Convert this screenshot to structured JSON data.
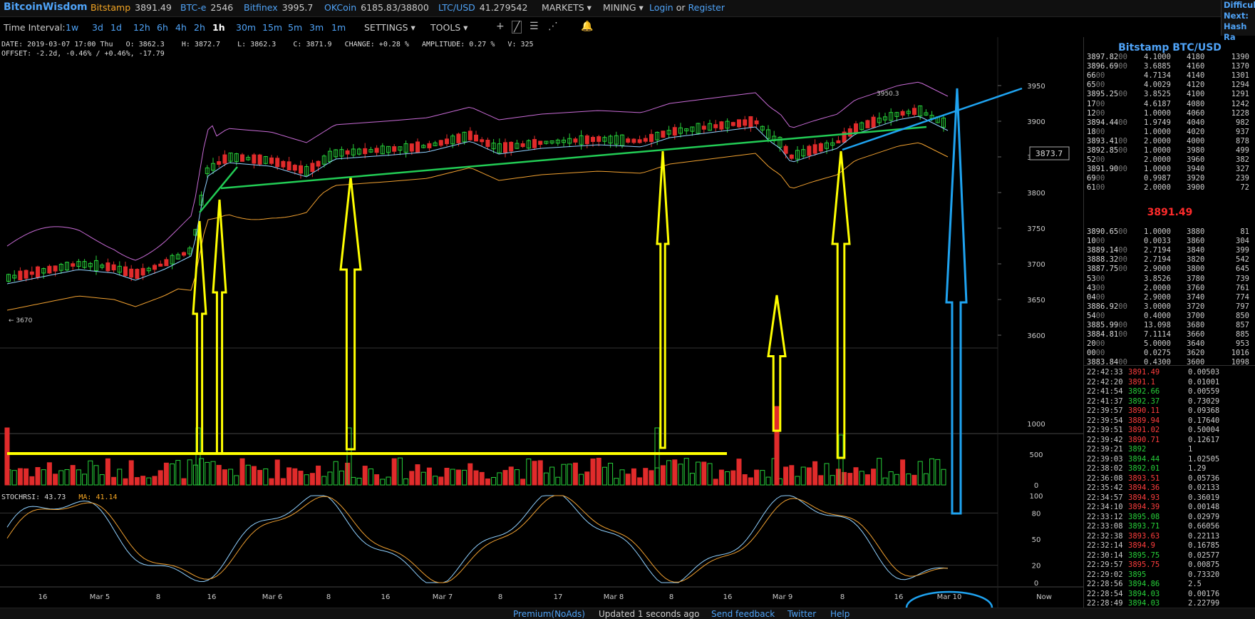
{
  "topbar": {
    "brand": "BitcoinWisdom",
    "tickers": [
      {
        "name": "Bitstamp",
        "value": "3891.49",
        "style": "orange"
      },
      {
        "name": "BTC-e",
        "value": "2546",
        "style": "blue"
      },
      {
        "name": "Bitfinex",
        "value": "3995.7",
        "style": "blue"
      },
      {
        "name": "OKCoin",
        "value": "6185.83/38800",
        "style": "blue"
      },
      {
        "name": "LTC/USD",
        "value": "41.279542",
        "style": "blue"
      }
    ],
    "markets": "MARKETS ▾",
    "mining": "MINING ▾",
    "login": "Login",
    "or": "or",
    "register": "Register",
    "difficulty": {
      "l1": "Difficult",
      "l2": "Next:",
      "l3": "Hash Ra"
    }
  },
  "toolbar": {
    "time_interval_label": "Time Interval:",
    "intervals": [
      "1w",
      "3d",
      "1d",
      "12h",
      "6h",
      "4h",
      "2h",
      "1h",
      "30m",
      "15m",
      "5m",
      "3m",
      "1m"
    ],
    "active_interval": "1h",
    "settings": "SETTINGS ▾",
    "tools": "TOOLS ▾",
    "tool_icons": [
      "crosshair-icon",
      "line-draw-icon",
      "horizontal-lines-icon",
      "fib-fan-icon",
      "alert-bell-icon"
    ]
  },
  "info": {
    "line1": "DATE: 2019-03-07 17:00 Thu   O: 3862.3    H: 3872.7    L: 3862.3    C: 3871.9   CHANGE: +0.28 %   AMPLITUDE: 0.27 %   V: 325",
    "line2": "OFFSET: -2.2d, -0.46% / +0.46%, -17.79"
  },
  "stoch": {
    "label": "STOCHRSI: 43.73",
    "ma": "MA: 41.14"
  },
  "price_tag": "3873.7",
  "low_marker": "← 3670",
  "high_marker": "3950.3",
  "price_axis": [
    "3950",
    "3900",
    "3850",
    "3800",
    "3750",
    "3700",
    "3650",
    "3600"
  ],
  "volume_axis": [
    "1000",
    "500",
    "0"
  ],
  "stoch_axis": [
    "100",
    "80",
    "50",
    "20",
    "0"
  ],
  "time_axis": [
    "16",
    "Mar 5",
    "8",
    "16",
    "Mar 6",
    "8",
    "16",
    "Mar 7",
    "8",
    "17",
    "Mar 8",
    "8",
    "16",
    "Mar 9",
    "8",
    "16",
    "Mar 10",
    "Now"
  ],
  "orderbook": {
    "title": "Bitstamp BTC/USD",
    "asks": [
      [
        "3897.82",
        "00",
        "4.1000",
        "4180",
        "1390"
      ],
      [
        "3896.69",
        "00",
        "3.6885",
        "4160",
        "1370"
      ],
      [
        "66",
        "00",
        "4.7134",
        "4140",
        "1301"
      ],
      [
        "65",
        "00",
        "4.0029",
        "4120",
        "1294"
      ],
      [
        "3895.25",
        "00",
        "3.8525",
        "4100",
        "1291"
      ],
      [
        "17",
        "00",
        "4.6187",
        "4080",
        "1242"
      ],
      [
        "12",
        "00",
        "1.0000",
        "4060",
        "1228"
      ],
      [
        "3894.44",
        "00",
        "1.9749",
        "4040",
        "982"
      ],
      [
        "18",
        "00",
        "1.0000",
        "4020",
        "937"
      ],
      [
        "3893.41",
        "00",
        "2.0000",
        "4000",
        "878"
      ],
      [
        "3892.85",
        "00",
        "1.0000",
        "3980",
        "499"
      ],
      [
        "52",
        "00",
        "2.0000",
        "3960",
        "382"
      ],
      [
        "3891.90",
        "00",
        "1.0000",
        "3940",
        "327"
      ],
      [
        "69",
        "00",
        "0.9987",
        "3920",
        "239"
      ],
      [
        "61",
        "00",
        "2.0000",
        "3900",
        "72"
      ]
    ],
    "last_price": "3891.49",
    "bids": [
      [
        "3890.65",
        "00",
        "1.0000",
        "3880",
        "81"
      ],
      [
        "10",
        "00",
        "0.0033",
        "3860",
        "304"
      ],
      [
        "3889.14",
        "00",
        "2.7194",
        "3840",
        "399"
      ],
      [
        "3888.32",
        "00",
        "2.7194",
        "3820",
        "542"
      ],
      [
        "3887.75",
        "00",
        "2.9000",
        "3800",
        "645"
      ],
      [
        "53",
        "00",
        "3.8526",
        "3780",
        "739"
      ],
      [
        "43",
        "00",
        "2.0000",
        "3760",
        "761"
      ],
      [
        "04",
        "00",
        "2.9000",
        "3740",
        "774"
      ],
      [
        "3886.92",
        "00",
        "3.0000",
        "3720",
        "797"
      ],
      [
        "54",
        "00",
        "0.4000",
        "3700",
        "850"
      ],
      [
        "3885.99",
        "00",
        "13.098",
        "3680",
        "857"
      ],
      [
        "3884.81",
        "00",
        "7.1114",
        "3660",
        "885"
      ],
      [
        "20",
        "00",
        "5.0000",
        "3640",
        "953"
      ],
      [
        "00",
        "00",
        "0.0275",
        "3620",
        "1016"
      ],
      [
        "3883.84",
        "00",
        "0.4300",
        "3600",
        "1098"
      ]
    ]
  },
  "trades": [
    [
      "22:42:33",
      "3891.49",
      "0.00503",
      "dn"
    ],
    [
      "22:42:20",
      "3891.1",
      "0.01001",
      "dn"
    ],
    [
      "22:41:54",
      "3892.66",
      "0.00559",
      "up"
    ],
    [
      "22:41:37",
      "3892.37",
      "0.73029",
      "up"
    ],
    [
      "22:39:57",
      "3890.11",
      "0.09368",
      "dn"
    ],
    [
      "22:39:54",
      "3889.94",
      "0.17640",
      "dn"
    ],
    [
      "22:39:51",
      "3891.02",
      "0.50004",
      "dn"
    ],
    [
      "22:39:42",
      "3890.71",
      "0.12617",
      "dn"
    ],
    [
      "22:39:21",
      "3892",
      "1",
      "up"
    ],
    [
      "22:39:03",
      "3894.44",
      "1.02505",
      "up"
    ],
    [
      "22:38:02",
      "3892.01",
      "1.29",
      "up"
    ],
    [
      "22:36:08",
      "3893.51",
      "0.05736",
      "dn"
    ],
    [
      "22:35:42",
      "3894.36",
      "0.02133",
      "dn"
    ],
    [
      "22:34:57",
      "3894.93",
      "0.36019",
      "dn"
    ],
    [
      "22:34:10",
      "3894.39",
      "0.00148",
      "dn"
    ],
    [
      "22:33:12",
      "3895.08",
      "0.02979",
      "up"
    ],
    [
      "22:33:08",
      "3893.71",
      "0.66056",
      "up"
    ],
    [
      "22:32:38",
      "3893.63",
      "0.22113",
      "dn"
    ],
    [
      "22:32:14",
      "3894.9",
      "0.16785",
      "dn"
    ],
    [
      "22:30:14",
      "3895.75",
      "0.02577",
      "up"
    ],
    [
      "22:29:57",
      "3895.75",
      "0.00875",
      "dn"
    ],
    [
      "22:29:02",
      "3895",
      "0.73320",
      "up"
    ],
    [
      "22:28:56",
      "3894.86",
      "2.5",
      "up"
    ],
    [
      "22:28:54",
      "3894.03",
      "0.00176",
      "up"
    ],
    [
      "22:28:49",
      "3894.03",
      "2.22799",
      "up"
    ]
  ],
  "footer": {
    "premium": "Premium(NoAds)",
    "updated": "Updated 1 seconds ago",
    "feedback": "Send feedback",
    "twitter": "Twitter",
    "help": "Help"
  },
  "colors": {
    "accent": "#4fa3f7",
    "up": "#27d13a",
    "down": "#ff3d3d",
    "annotation_yellow": "#ffff00",
    "annotation_green": "#22cc55",
    "annotation_blue": "#1fa3f0"
  }
}
